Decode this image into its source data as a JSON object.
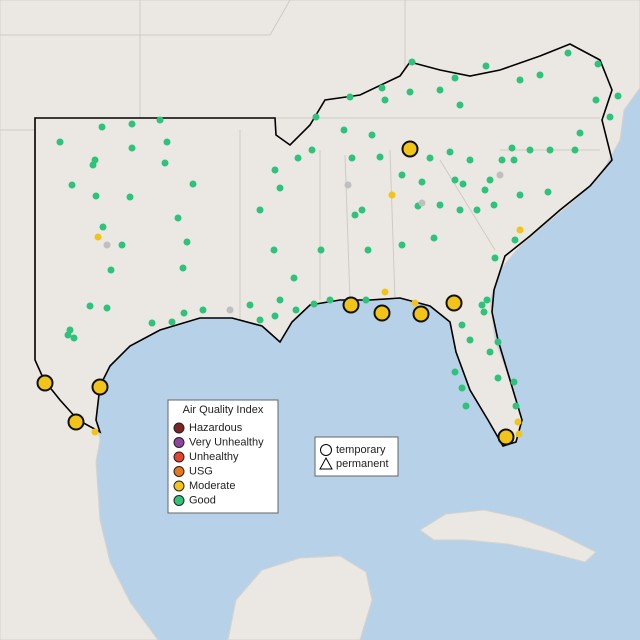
{
  "legend": {
    "title": "Air Quality Index",
    "items": [
      {
        "label": "Hazardous",
        "color": "#7e2424"
      },
      {
        "label": "Very Unhealthy",
        "color": "#8e44a0"
      },
      {
        "label": "Unhealthy",
        "color": "#e5432e"
      },
      {
        "label": "USG",
        "color": "#e8771c"
      },
      {
        "label": "Moderate",
        "color": "#f2c419"
      },
      {
        "label": "Good",
        "color": "#2ec27a"
      }
    ]
  },
  "shape_legend": {
    "items": [
      "temporary",
      "permanent"
    ]
  }
}
